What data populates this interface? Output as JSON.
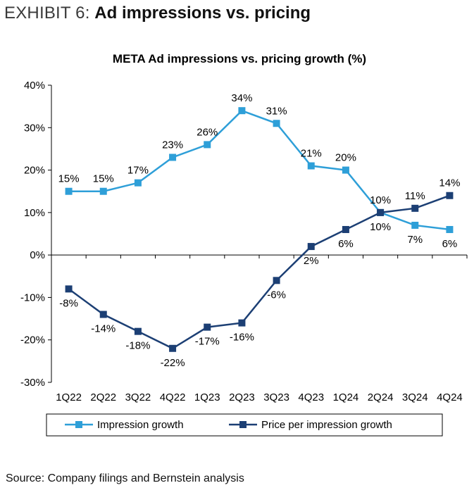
{
  "header": {
    "exhibit_label": "EXHIBIT 6:",
    "exhibit_title": "Ad impressions vs. pricing"
  },
  "chart_data": {
    "type": "line",
    "title": "META Ad impressions vs. pricing growth (%)",
    "xlabel": "",
    "ylabel": "",
    "categories": [
      "1Q22",
      "2Q22",
      "3Q22",
      "4Q22",
      "1Q23",
      "2Q23",
      "3Q23",
      "4Q23",
      "1Q24",
      "2Q24",
      "3Q24",
      "4Q24"
    ],
    "ylim": [
      -30,
      40
    ],
    "yticks": [
      -30,
      -20,
      -10,
      0,
      10,
      20,
      30,
      40
    ],
    "ytick_labels": [
      "-30%",
      "-20%",
      "-10%",
      "0%",
      "10%",
      "20%",
      "30%",
      "40%"
    ],
    "grid": false,
    "legend_position": "bottom",
    "series": [
      {
        "name": "Impression growth",
        "color": "#2e9fd8",
        "values": [
          15,
          15,
          17,
          23,
          26,
          34,
          31,
          21,
          20,
          10,
          7,
          6
        ],
        "labels": [
          "15%",
          "15%",
          "17%",
          "23%",
          "26%",
          "34%",
          "31%",
          "21%",
          "20%",
          "10%",
          "7%",
          "6%"
        ],
        "label_pos": [
          "above",
          "above",
          "above",
          "above",
          "above",
          "above",
          "above",
          "above",
          "above",
          "below",
          "below",
          "below"
        ]
      },
      {
        "name": "Price per impression growth",
        "color": "#1c3f74",
        "values": [
          -8,
          -14,
          -18,
          -22,
          -17,
          -16,
          -6,
          2,
          6,
          10,
          11,
          14
        ],
        "labels": [
          "-8%",
          "-14%",
          "-18%",
          "-22%",
          "-17%",
          "-16%",
          "-6%",
          "2%",
          "6%",
          "10%",
          "11%",
          "14%"
        ],
        "label_pos": [
          "below",
          "below",
          "below",
          "below",
          "below",
          "below",
          "below",
          "below",
          "below",
          "above",
          "above",
          "above"
        ]
      }
    ]
  },
  "footer": {
    "source": "Source: Company filings and Bernstein analysis"
  }
}
